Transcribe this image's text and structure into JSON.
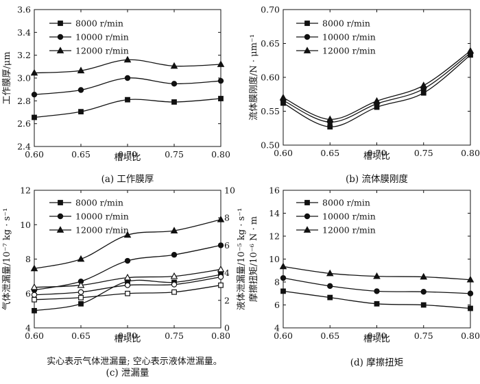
{
  "chart_data": [
    {
      "id": "a",
      "type": "line",
      "caption": "(a) 工作膜厚",
      "xlabel": "槽坝比",
      "ylabel": "工作膜厚/μm",
      "x": [
        0.6,
        0.65,
        0.7,
        0.75,
        0.8
      ],
      "xticks": [
        "0.60",
        "0.65",
        "0.70",
        "0.75",
        "0.80"
      ],
      "xlim": [
        0.6,
        0.8
      ],
      "ylim": [
        2.4,
        3.6
      ],
      "yticks": [
        "2.4",
        "2.6",
        "2.8",
        "3.0",
        "3.2",
        "3.4",
        "3.6"
      ],
      "legend": [
        "8000 r/min",
        "10000 r/min",
        "12000 r/min"
      ],
      "series": [
        {
          "name": "8000 r/min",
          "marker": "square",
          "values": [
            2.655,
            2.705,
            2.81,
            2.79,
            2.82
          ]
        },
        {
          "name": "10000 r/min",
          "marker": "circle",
          "values": [
            2.855,
            2.895,
            3.0,
            2.95,
            2.975
          ]
        },
        {
          "name": "12000 r/min",
          "marker": "triangle",
          "values": [
            3.045,
            3.065,
            3.16,
            3.105,
            3.12
          ]
        }
      ]
    },
    {
      "id": "b",
      "type": "line",
      "caption": "(b) 流体膜刚度",
      "xlabel": "槽坝比",
      "ylabel": "流体膜刚度/N · μm⁻¹",
      "x": [
        0.6,
        0.65,
        0.7,
        0.75,
        0.8
      ],
      "xticks": [
        "0.60",
        "0.65",
        "0.70",
        "0.75",
        "0.80"
      ],
      "xlim": [
        0.6,
        0.8
      ],
      "ylim": [
        0.5,
        0.7
      ],
      "yticks": [
        "0.50",
        "0.55",
        "0.60",
        "0.65",
        "0.70"
      ],
      "legend": [
        "8000 r/min",
        "10000 r/min",
        "12000 r/min"
      ],
      "series": [
        {
          "name": "8000 r/min",
          "marker": "square",
          "values": [
            0.562,
            0.527,
            0.556,
            0.577,
            0.633
          ]
        },
        {
          "name": "10000 r/min",
          "marker": "circle",
          "values": [
            0.566,
            0.534,
            0.561,
            0.583,
            0.636
          ]
        },
        {
          "name": "12000 r/min",
          "marker": "triangle",
          "values": [
            0.57,
            0.538,
            0.565,
            0.588,
            0.639
          ]
        }
      ]
    },
    {
      "id": "c",
      "type": "line",
      "caption": "(c) 泄漏量",
      "note": "实心表示气体泄漏量; 空心表示液体泄漏量。",
      "xlabel": "槽坝比",
      "ylabel": "气体泄漏量/10⁻⁷ kg · s⁻¹",
      "ylabel_right": "液体泄漏量/10⁻⁵ kg · s⁻¹",
      "x": [
        0.6,
        0.65,
        0.7,
        0.75,
        0.8
      ],
      "xticks": [
        "0.60",
        "0.65",
        "0.70",
        "0.75",
        "0.80"
      ],
      "xlim": [
        0.6,
        0.8
      ],
      "ylim": [
        4,
        12
      ],
      "yticks": [
        "4",
        "6",
        "8",
        "10",
        "12"
      ],
      "ylim_right": [
        0,
        10
      ],
      "yticks_right": [
        "0",
        "2",
        "4",
        "6",
        "8",
        "10"
      ],
      "legend": [
        "8000 r/min",
        "10000 r/min",
        "12000 r/min"
      ],
      "series": [
        {
          "name": "8000 r/min",
          "marker": "square",
          "filled": true,
          "axis": "left",
          "values": [
            5.0,
            5.4,
            6.7,
            6.65,
            7.1
          ]
        },
        {
          "name": "10000 r/min",
          "marker": "circle",
          "filled": true,
          "axis": "left",
          "values": [
            6.2,
            6.7,
            7.9,
            8.25,
            8.8
          ]
        },
        {
          "name": "12000 r/min",
          "marker": "triangle",
          "filled": true,
          "axis": "left",
          "values": [
            7.45,
            8.0,
            9.4,
            9.65,
            10.3
          ]
        },
        {
          "name": "8000 r/min",
          "marker": "square",
          "filled": false,
          "axis": "right",
          "values": [
            2.05,
            2.2,
            2.5,
            2.6,
            3.1
          ]
        },
        {
          "name": "10000 r/min",
          "marker": "circle",
          "filled": false,
          "axis": "right",
          "values": [
            2.4,
            2.6,
            3.1,
            3.15,
            3.7
          ]
        },
        {
          "name": "12000 r/min",
          "marker": "triangle",
          "filled": false,
          "axis": "right",
          "values": [
            2.95,
            3.1,
            3.65,
            3.75,
            4.25
          ]
        }
      ]
    },
    {
      "id": "d",
      "type": "line",
      "caption": "(d) 摩擦扭矩",
      "xlabel": "槽坝比",
      "ylabel": "摩擦扭矩/10⁻⁶ N · m",
      "x": [
        0.6,
        0.65,
        0.7,
        0.75,
        0.8
      ],
      "xticks": [
        "0.60",
        "0.65",
        "0.70",
        "0.75",
        "0.80"
      ],
      "xlim": [
        0.6,
        0.8
      ],
      "ylim": [
        4,
        16
      ],
      "yticks": [
        "4",
        "6",
        "8",
        "10",
        "12",
        "14",
        "16"
      ],
      "legend": [
        "8000 r/min",
        "10000 r/min",
        "12000 r/min"
      ],
      "series": [
        {
          "name": "8000 r/min",
          "marker": "square",
          "values": [
            7.2,
            6.65,
            6.1,
            6.0,
            5.7
          ]
        },
        {
          "name": "10000 r/min",
          "marker": "circle",
          "values": [
            8.35,
            7.65,
            7.2,
            7.15,
            7.0
          ]
        },
        {
          "name": "12000 r/min",
          "marker": "triangle",
          "values": [
            9.35,
            8.75,
            8.5,
            8.45,
            8.2
          ]
        }
      ]
    }
  ]
}
